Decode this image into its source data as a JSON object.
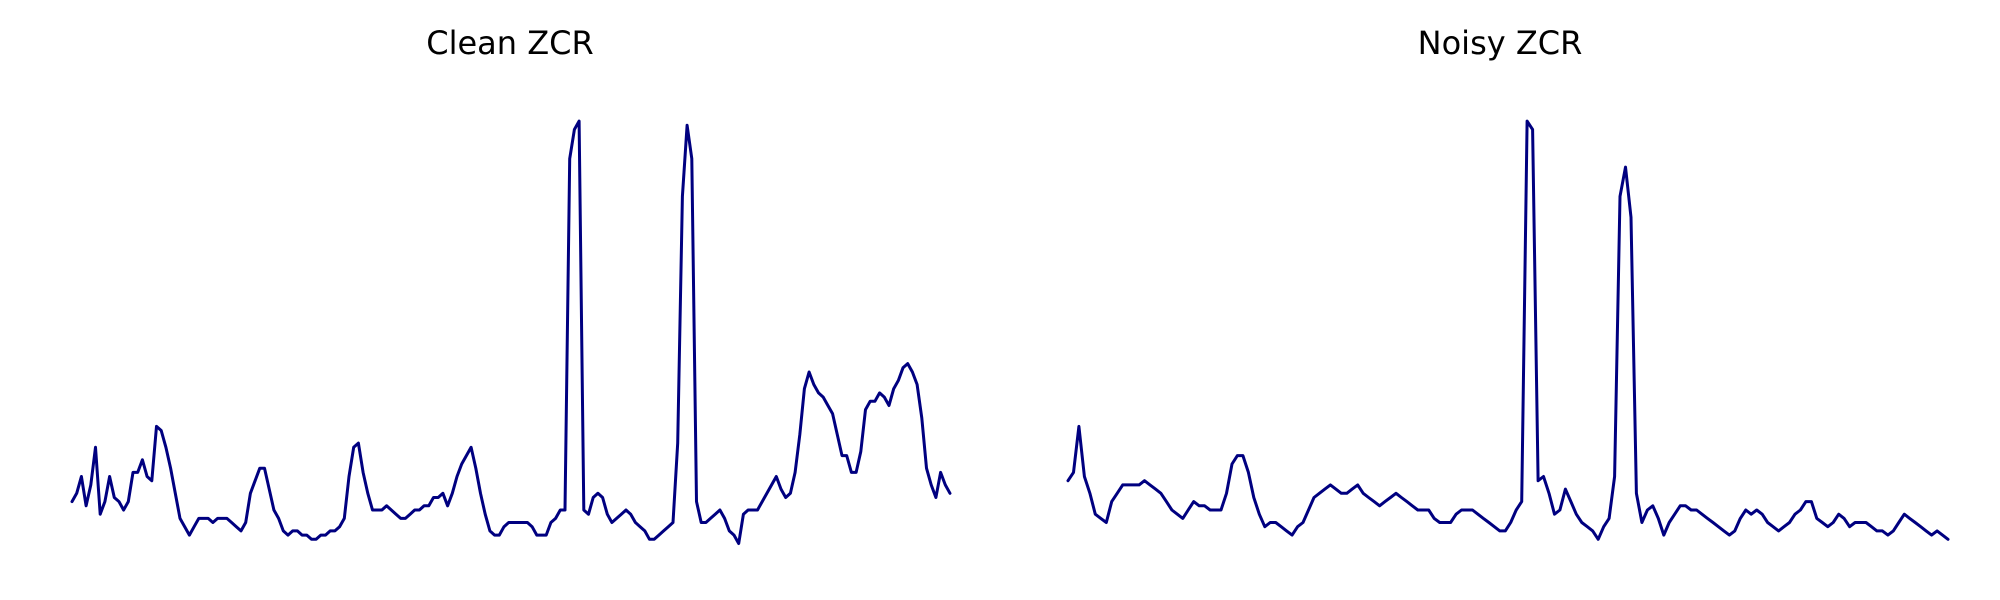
{
  "chart_data": [
    {
      "type": "line",
      "title": "Clean ZCR",
      "xlabel": "",
      "ylabel": "",
      "axes_visible": false,
      "grid": false,
      "legend": "none",
      "series": [
        {
          "color": "#000080",
          "values": [
            0.08,
            0.1,
            0.14,
            0.07,
            0.12,
            0.21,
            0.05,
            0.08,
            0.14,
            0.09,
            0.08,
            0.06,
            0.08,
            0.15,
            0.15,
            0.18,
            0.14,
            0.13,
            0.26,
            0.25,
            0.21,
            0.16,
            0.1,
            0.04,
            0.02,
            0.0,
            0.02,
            0.04,
            0.04,
            0.04,
            0.03,
            0.04,
            0.04,
            0.04,
            0.03,
            0.02,
            0.01,
            0.03,
            0.1,
            0.13,
            0.16,
            0.16,
            0.11,
            0.06,
            0.04,
            0.01,
            0.0,
            0.01,
            0.01,
            0.0,
            0.0,
            -0.01,
            -0.01,
            0.0,
            0.0,
            0.01,
            0.01,
            0.02,
            0.04,
            0.14,
            0.21,
            0.22,
            0.15,
            0.1,
            0.06,
            0.06,
            0.06,
            0.07,
            0.06,
            0.05,
            0.04,
            0.04,
            0.05,
            0.06,
            0.06,
            0.07,
            0.07,
            0.09,
            0.09,
            0.1,
            0.07,
            0.1,
            0.14,
            0.17,
            0.19,
            0.21,
            0.16,
            0.1,
            0.05,
            0.01,
            0.0,
            0.0,
            0.02,
            0.03,
            0.03,
            0.03,
            0.03,
            0.03,
            0.02,
            0.0,
            0.0,
            0.0,
            0.03,
            0.04,
            0.06,
            0.06,
            0.9,
            0.97,
            0.99,
            0.06,
            0.05,
            0.09,
            0.1,
            0.09,
            0.05,
            0.03,
            0.04,
            0.05,
            0.06,
            0.05,
            0.03,
            0.02,
            0.01,
            -0.01,
            -0.01,
            0.0,
            0.01,
            0.02,
            0.03,
            0.22,
            0.81,
            0.98,
            0.9,
            0.08,
            0.03,
            0.03,
            0.04,
            0.05,
            0.06,
            0.04,
            0.01,
            0.0,
            -0.02,
            0.05,
            0.06,
            0.06,
            0.06,
            0.08,
            0.1,
            0.12,
            0.14,
            0.11,
            0.09,
            0.1,
            0.15,
            0.24,
            0.35,
            0.39,
            0.36,
            0.34,
            0.33,
            0.31,
            0.29,
            0.24,
            0.19,
            0.19,
            0.15,
            0.15,
            0.2,
            0.3,
            0.32,
            0.32,
            0.34,
            0.33,
            0.31,
            0.35,
            0.37,
            0.4,
            0.41,
            0.39,
            0.36,
            0.28,
            0.16,
            0.12,
            0.09,
            0.15,
            0.12,
            0.1
          ]
        }
      ],
      "ylim": [
        -0.05,
        1.05
      ]
    },
    {
      "type": "line",
      "title": "Noisy ZCR",
      "xlabel": "",
      "ylabel": "",
      "axes_visible": false,
      "grid": false,
      "legend": "none",
      "series": [
        {
          "color": "#000080",
          "values": [
            0.13,
            0.15,
            0.26,
            0.14,
            0.1,
            0.05,
            0.04,
            0.03,
            0.08,
            0.1,
            0.12,
            0.12,
            0.12,
            0.12,
            0.13,
            0.12,
            0.11,
            0.1,
            0.08,
            0.06,
            0.05,
            0.04,
            0.06,
            0.08,
            0.07,
            0.07,
            0.06,
            0.06,
            0.06,
            0.1,
            0.17,
            0.19,
            0.19,
            0.15,
            0.09,
            0.05,
            0.02,
            0.03,
            0.03,
            0.02,
            0.01,
            0.0,
            0.02,
            0.03,
            0.06,
            0.09,
            0.1,
            0.11,
            0.12,
            0.11,
            0.1,
            0.1,
            0.11,
            0.12,
            0.1,
            0.09,
            0.08,
            0.07,
            0.08,
            0.09,
            0.1,
            0.09,
            0.08,
            0.07,
            0.06,
            0.06,
            0.06,
            0.04,
            0.03,
            0.03,
            0.03,
            0.05,
            0.06,
            0.06,
            0.06,
            0.05,
            0.04,
            0.03,
            0.02,
            0.01,
            0.01,
            0.03,
            0.06,
            0.08,
            0.99,
            0.97,
            0.13,
            0.14,
            0.1,
            0.05,
            0.06,
            0.11,
            0.08,
            0.05,
            0.03,
            0.02,
            0.01,
            -0.01,
            0.02,
            0.04,
            0.14,
            0.81,
            0.88,
            0.76,
            0.1,
            0.03,
            0.06,
            0.07,
            0.04,
            0.0,
            0.03,
            0.05,
            0.07,
            0.07,
            0.06,
            0.06,
            0.05,
            0.04,
            0.03,
            0.02,
            0.01,
            0.0,
            0.01,
            0.04,
            0.06,
            0.05,
            0.06,
            0.05,
            0.03,
            0.02,
            0.01,
            0.02,
            0.03,
            0.05,
            0.06,
            0.08,
            0.08,
            0.04,
            0.03,
            0.02,
            0.03,
            0.05,
            0.04,
            0.02,
            0.03,
            0.03,
            0.03,
            0.02,
            0.01,
            0.01,
            0.0,
            0.01,
            0.03,
            0.05,
            0.04,
            0.03,
            0.02,
            0.01,
            0.0,
            0.01,
            0.0,
            -0.01
          ]
        }
      ],
      "ylim": [
        -0.05,
        1.05
      ]
    }
  ]
}
